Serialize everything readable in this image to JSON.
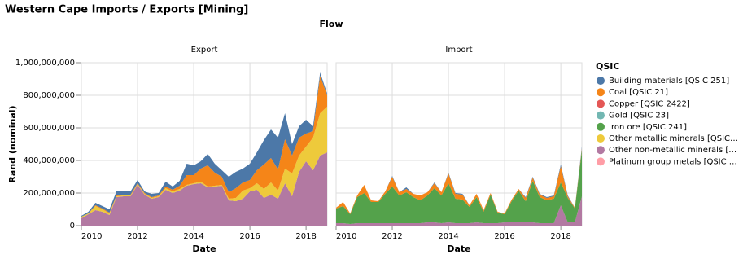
{
  "chart_data": {
    "type": "area",
    "title": "Western Cape Imports / Exports [Mining]",
    "column_title": "Flow",
    "x_label": "Date",
    "y_label": "Rand (nominal)",
    "legend_title": "QSIC",
    "x": [
      2010,
      2010.25,
      2010.5,
      2010.75,
      2011,
      2011.25,
      2011.5,
      2011.75,
      2012,
      2012.25,
      2012.5,
      2012.75,
      2013,
      2013.25,
      2013.5,
      2013.75,
      2014,
      2014.25,
      2014.5,
      2014.75,
      2015,
      2015.25,
      2015.5,
      2015.75,
      2016,
      2016.25,
      2016.5,
      2016.75,
      2017,
      2017.25,
      2017.5,
      2017.75,
      2018,
      2018.25,
      2018.5,
      2018.75
    ],
    "xlim": [
      2010,
      2018.75
    ],
    "xticks": [
      2010,
      2012,
      2014,
      2016,
      2018
    ],
    "ylim": [
      0,
      1000000000
    ],
    "yticks": [
      0,
      {
        "value": 200000000,
        "label": "200,000,000"
      },
      {
        "value": 400000000,
        "label": "400,000,000"
      },
      {
        "value": 600000000,
        "label": "600,000,000"
      },
      {
        "value": 800000000,
        "label": "800,000,000"
      },
      {
        "value": 1000000000,
        "label": "1,000,000,000"
      }
    ],
    "grid": true,
    "legend": [
      {
        "name": "Building materials [QSIC 251]",
        "color": "#4c78a8"
      },
      {
        "name": "Coal [QSIC 21]",
        "color": "#f58518"
      },
      {
        "name": "Copper [QSIC 2422]",
        "color": "#e45756"
      },
      {
        "name": "Gold [QSIC 23]",
        "color": "#72b7b2"
      },
      {
        "name": "Iron ore [QSIC 241]",
        "color": "#54a24b"
      },
      {
        "name": "Other metallic minerals [QSIC…",
        "color": "#eeca3b"
      },
      {
        "name": "Other non-metallic minerals […",
        "color": "#b279a2"
      },
      {
        "name": "Platinum group metals [QSIC …",
        "color": "#ff9da6"
      }
    ],
    "facets": [
      {
        "title": "Export",
        "series": [
          {
            "values": [
              5000000,
              10000000,
              15000000,
              15000000,
              20000000,
              25000000,
              25000000,
              20000000,
              20000000,
              10000000,
              20000000,
              15000000,
              30000000,
              20000000,
              30000000,
              70000000,
              60000000,
              45000000,
              70000000,
              55000000,
              40000000,
              95000000,
              100000000,
              85000000,
              100000000,
              110000000,
              150000000,
              175000000,
              195000000,
              160000000,
              70000000,
              70000000,
              85000000,
              30000000,
              20000000,
              10000000
            ]
          },
          {
            "values": [
              0,
              0,
              5000000,
              5000000,
              5000000,
              5000000,
              5000000,
              5000000,
              5000000,
              5000000,
              5000000,
              5000000,
              10000000,
              10000000,
              20000000,
              60000000,
              50000000,
              80000000,
              130000000,
              80000000,
              50000000,
              40000000,
              60000000,
              50000000,
              50000000,
              80000000,
              150000000,
              150000000,
              130000000,
              180000000,
              110000000,
              110000000,
              80000000,
              40000000,
              230000000,
              70000000
            ]
          },
          {
            "values": [
              0,
              0,
              0,
              0,
              0,
              0,
              0,
              0,
              0,
              0,
              0,
              0,
              0,
              0,
              0,
              0,
              0,
              0,
              0,
              0,
              0,
              0,
              0,
              0,
              0,
              0,
              0,
              0,
              0,
              0,
              0,
              0,
              0,
              0,
              0,
              0
            ]
          },
          {
            "values": [
              0,
              0,
              0,
              0,
              0,
              0,
              0,
              0,
              0,
              0,
              0,
              0,
              0,
              0,
              0,
              0,
              0,
              0,
              0,
              0,
              0,
              0,
              0,
              0,
              0,
              0,
              0,
              0,
              0,
              0,
              0,
              0,
              0,
              0,
              0,
              0
            ]
          },
          {
            "values": [
              0,
              0,
              0,
              0,
              0,
              0,
              0,
              0,
              0,
              0,
              0,
              0,
              0,
              0,
              0,
              0,
              0,
              0,
              0,
              0,
              0,
              0,
              0,
              0,
              0,
              0,
              0,
              0,
              0,
              0,
              0,
              0,
              0,
              0,
              0,
              0
            ]
          },
          {
            "values": [
              10000000,
              5000000,
              25000000,
              15000000,
              10000000,
              5000000,
              5000000,
              5000000,
              5000000,
              5000000,
              5000000,
              5000000,
              10000000,
              10000000,
              10000000,
              5000000,
              5000000,
              10000000,
              5000000,
              5000000,
              5000000,
              10000000,
              20000000,
              50000000,
              20000000,
              40000000,
              55000000,
              75000000,
              50000000,
              90000000,
              140000000,
              100000000,
              90000000,
              200000000,
              260000000,
              280000000
            ]
          },
          {
            "values": [
              45000000,
              70000000,
              95000000,
              85000000,
              65000000,
              175000000,
              180000000,
              180000000,
              250000000,
              190000000,
              165000000,
              175000000,
              220000000,
              200000000,
              215000000,
              245000000,
              255000000,
              260000000,
              235000000,
              240000000,
              245000000,
              155000000,
              150000000,
              165000000,
              210000000,
              220000000,
              170000000,
              190000000,
              165000000,
              260000000,
              180000000,
              330000000,
              395000000,
              340000000,
              430000000,
              450000000
            ]
          },
          {
            "values": [
              0,
              0,
              0,
              0,
              0,
              0,
              0,
              0,
              0,
              0,
              0,
              0,
              0,
              0,
              0,
              0,
              0,
              0,
              0,
              0,
              0,
              0,
              0,
              0,
              0,
              0,
              0,
              0,
              0,
              0,
              0,
              0,
              0,
              0,
              0,
              0
            ]
          }
        ]
      },
      {
        "title": "Import",
        "series": [
          {
            "values": [
              0,
              0,
              0,
              0,
              0,
              0,
              0,
              0,
              5000000,
              0,
              10000000,
              0,
              0,
              0,
              5000000,
              0,
              5000000,
              5000000,
              5000000,
              0,
              0,
              0,
              0,
              0,
              0,
              0,
              0,
              5000000,
              5000000,
              5000000,
              5000000,
              5000000,
              10000000,
              5000000,
              0,
              10000000
            ]
          },
          {
            "values": [
              5000000,
              25000000,
              5000000,
              10000000,
              50000000,
              10000000,
              5000000,
              15000000,
              60000000,
              20000000,
              20000000,
              20000000,
              30000000,
              20000000,
              30000000,
              20000000,
              60000000,
              30000000,
              30000000,
              10000000,
              20000000,
              10000000,
              10000000,
              5000000,
              5000000,
              10000000,
              10000000,
              20000000,
              20000000,
              15000000,
              15000000,
              15000000,
              100000000,
              10000000,
              5000000,
              10000000
            ]
          },
          {
            "values": [
              0,
              0,
              0,
              0,
              0,
              0,
              0,
              0,
              0,
              0,
              0,
              0,
              0,
              0,
              0,
              0,
              0,
              0,
              0,
              0,
              0,
              0,
              0,
              0,
              0,
              0,
              0,
              0,
              0,
              0,
              0,
              0,
              0,
              0,
              0,
              0
            ]
          },
          {
            "values": [
              0,
              0,
              0,
              0,
              0,
              0,
              0,
              0,
              0,
              0,
              0,
              0,
              0,
              0,
              0,
              0,
              0,
              0,
              0,
              0,
              0,
              0,
              0,
              0,
              0,
              0,
              0,
              0,
              0,
              0,
              0,
              0,
              0,
              0,
              0,
              0
            ]
          },
          {
            "values": [
              90000000,
              105000000,
              60000000,
              160000000,
              185000000,
              130000000,
              130000000,
              180000000,
              225000000,
              170000000,
              190000000,
              160000000,
              140000000,
              165000000,
              210000000,
              170000000,
              240000000,
              150000000,
              145000000,
              100000000,
              155000000,
              70000000,
              175000000,
              65000000,
              50000000,
              130000000,
              195000000,
              130000000,
              255000000,
              160000000,
              140000000,
              150000000,
              140000000,
              150000000,
              85000000,
              285000000
            ]
          },
          {
            "values": [
              0,
              0,
              0,
              0,
              0,
              0,
              0,
              0,
              0,
              0,
              0,
              0,
              0,
              0,
              0,
              0,
              0,
              0,
              0,
              0,
              0,
              0,
              0,
              0,
              0,
              0,
              0,
              0,
              0,
              0,
              0,
              0,
              0,
              0,
              0,
              0
            ]
          },
          {
            "values": [
              15000000,
              15000000,
              10000000,
              15000000,
              15000000,
              15000000,
              15000000,
              15000000,
              15000000,
              15000000,
              15000000,
              15000000,
              15000000,
              20000000,
              20000000,
              15000000,
              20000000,
              15000000,
              15000000,
              15000000,
              20000000,
              15000000,
              15000000,
              15000000,
              20000000,
              20000000,
              20000000,
              20000000,
              20000000,
              15000000,
              15000000,
              15000000,
              125000000,
              20000000,
              20000000,
              180000000
            ]
          },
          {
            "values": [
              0,
              0,
              0,
              0,
              0,
              0,
              0,
              0,
              0,
              0,
              0,
              0,
              0,
              0,
              0,
              0,
              0,
              0,
              0,
              0,
              0,
              0,
              0,
              0,
              0,
              0,
              0,
              0,
              0,
              0,
              0,
              0,
              0,
              0,
              0,
              0
            ]
          }
        ]
      }
    ]
  }
}
